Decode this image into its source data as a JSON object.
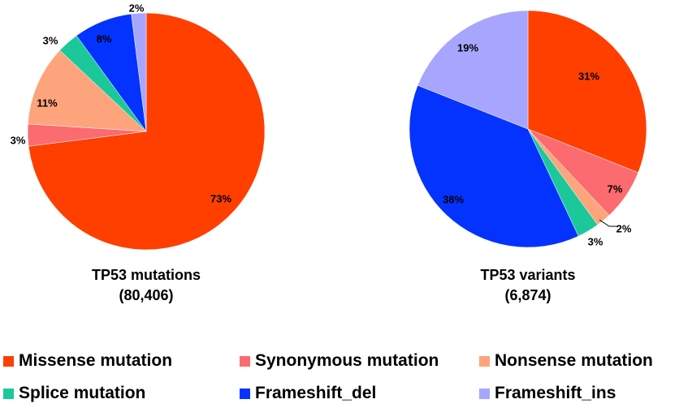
{
  "chart_data": [
    {
      "type": "pie",
      "title": "TP53 mutations",
      "subtitle": "(80,406)",
      "slices": [
        {
          "name": "Missense mutation",
          "value": 73,
          "label": "73%",
          "color": "#fe3f00"
        },
        {
          "name": "Synonymous mutation",
          "value": 3,
          "label": "3%",
          "color": "#fb6b6f"
        },
        {
          "name": "Nonsense mutation",
          "value": 11,
          "label": "11%",
          "color": "#fea47c"
        },
        {
          "name": "Splice mutation",
          "value": 3,
          "label": "3%",
          "color": "#1cc89a"
        },
        {
          "name": "Frameshift_del",
          "value": 8,
          "label": "8%",
          "color": "#0433ff"
        },
        {
          "name": "Frameshift_ins",
          "value": 2,
          "label": "2%",
          "color": "#a7a5fd"
        }
      ]
    },
    {
      "type": "pie",
      "title": "TP53 variants",
      "subtitle": "(6,874)",
      "slices": [
        {
          "name": "Missense mutation",
          "value": 31,
          "label": "31%",
          "color": "#fe3f00"
        },
        {
          "name": "Synonymous mutation",
          "value": 7,
          "label": "7%",
          "color": "#fb6b6f"
        },
        {
          "name": "Nonsense mutation",
          "value": 2,
          "label": "2%",
          "color": "#fea47c"
        },
        {
          "name": "Splice mutation",
          "value": 3,
          "label": "3%",
          "color": "#1cc89a"
        },
        {
          "name": "Frameshift_del",
          "value": 38,
          "label": "38%",
          "color": "#0433ff"
        },
        {
          "name": "Frameshift_ins",
          "value": 19,
          "label": "19%",
          "color": "#a7a5fd"
        }
      ]
    }
  ],
  "legend": {
    "placement": "bottom",
    "items": [
      {
        "label": "Missense mutation",
        "color": "#fe3f00"
      },
      {
        "label": "Synonymous mutation",
        "color": "#fb6b6f"
      },
      {
        "label": "Nonsense mutation",
        "color": "#fea47c"
      },
      {
        "label": "Splice mutation",
        "color": "#1cc89a"
      },
      {
        "label": "Frameshift_del",
        "color": "#0433ff"
      },
      {
        "label": "Frameshift_ins",
        "color": "#a7a5fd"
      }
    ]
  }
}
